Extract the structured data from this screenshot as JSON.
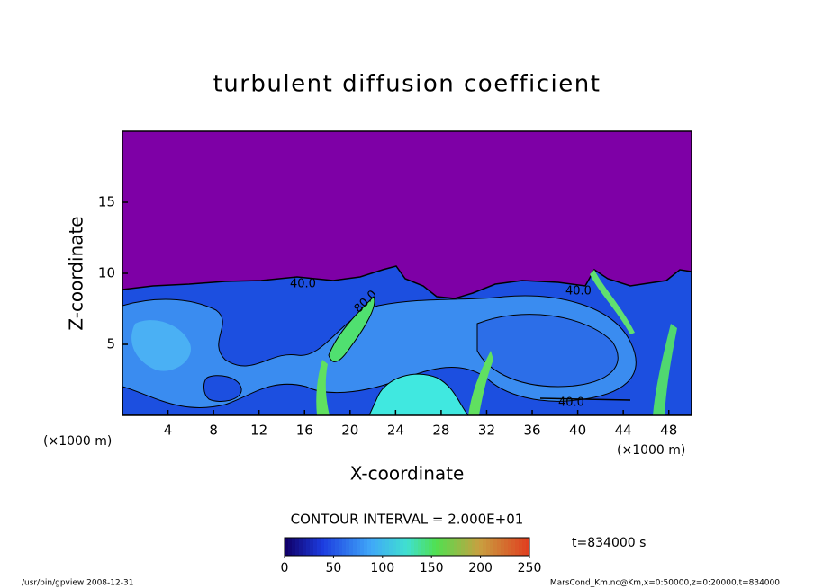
{
  "chart_data": {
    "type": "contour",
    "title": "turbulent diffusion coefficient",
    "x_label": "X-coordinate",
    "y_label": "Z-coordinate",
    "x_unit": "(×1000 m)",
    "x_unit_right": "(×1000 m)",
    "xlim": [
      0,
      50
    ],
    "ylim": [
      0,
      20
    ],
    "xticks": [
      4,
      8,
      12,
      16,
      20,
      24,
      28,
      32,
      36,
      40,
      44,
      48
    ],
    "yticks": [
      5,
      10,
      15
    ],
    "contour_interval": "CONTOUR INTERVAL = 2.000E+01",
    "contour_labels": [
      "40.0",
      "40.0",
      "40.0",
      "80.0"
    ],
    "colorbar": {
      "clim": [
        0,
        250
      ],
      "ticks": [
        0,
        50,
        100,
        150,
        200,
        250
      ]
    },
    "time_label": "t=834000 s",
    "footer_left": "/usr/bin/gpview   2008-12-31",
    "footer_right": "MarsCond_Km.nc@Km,x=0:50000,z=0:20000,t=834000"
  }
}
